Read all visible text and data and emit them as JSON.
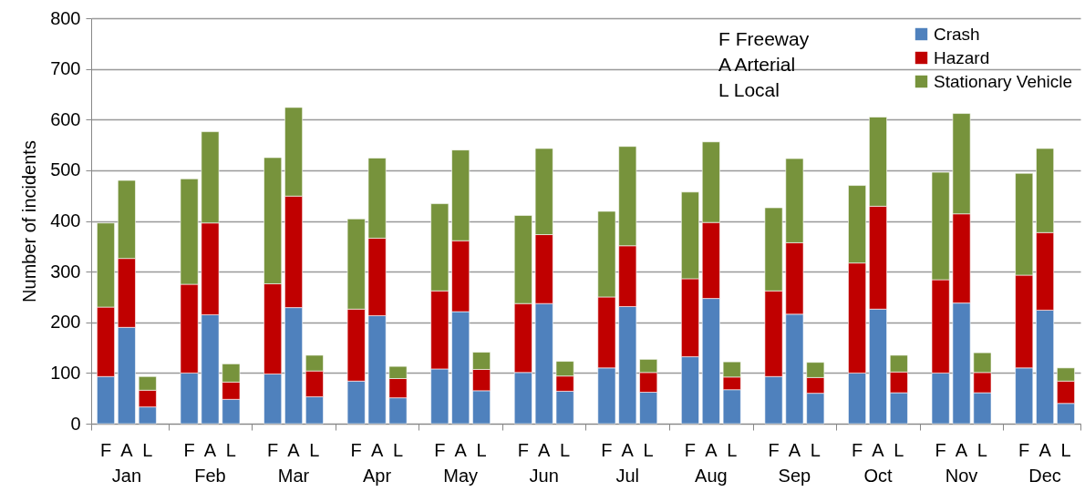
{
  "chart_data": {
    "type": "bar",
    "stacked": true,
    "ylabel": "Number of  incidents",
    "categories": [
      "F",
      "A",
      "L",
      "F",
      "A",
      "L",
      "F",
      "A",
      "L",
      "F",
      "A",
      "L",
      "F",
      "A",
      "L",
      "F",
      "A",
      "L",
      "F",
      "A",
      "L",
      "F",
      "A",
      "L",
      "F",
      "A",
      "L",
      "F",
      "A",
      "L",
      "F",
      "A",
      "L",
      "F",
      "A",
      "L"
    ],
    "series": [
      {
        "name": "Crash",
        "color": "#4f81bd",
        "values": [
          93,
          190,
          33,
          100,
          215,
          48,
          98,
          229,
          53,
          84,
          213,
          51,
          108,
          221,
          65,
          101,
          237,
          64,
          110,
          231,
          62,
          132,
          247,
          67,
          93,
          216,
          60,
          100,
          226,
          61,
          100,
          238,
          61,
          110,
          224,
          40
        ]
      },
      {
        "name": "Hazard",
        "color": "#c00000",
        "values": [
          137,
          136,
          33,
          175,
          181,
          34,
          178,
          220,
          51,
          142,
          153,
          38,
          154,
          140,
          42,
          136,
          136,
          30,
          140,
          120,
          39,
          154,
          150,
          25,
          169,
          141,
          31,
          217,
          203,
          41,
          184,
          176,
          40,
          183,
          153,
          44
        ]
      },
      {
        "name": "Stationary Vehicle",
        "color": "#77933c",
        "values": [
          166,
          154,
          27,
          208,
          180,
          36,
          249,
          175,
          31,
          178,
          158,
          24,
          172,
          179,
          34,
          174,
          170,
          29,
          169,
          196,
          26,
          171,
          159,
          30,
          164,
          166,
          30,
          153,
          176,
          33,
          212,
          198,
          39,
          201,
          166,
          26
        ]
      }
    ],
    "ylim": [
      0,
      800
    ],
    "yticks": [
      0,
      100,
      200,
      300,
      400,
      500,
      600,
      700,
      800
    ],
    "grid": "y",
    "legend": "top right",
    "annotations": [
      "Jan",
      "Feb",
      "Mar",
      "Apr",
      "May",
      "Jun",
      "Jul",
      "Aug",
      "Sep",
      "Oct",
      "Nov",
      "Dec",
      "F   Freeway",
      "A   Arterial",
      "L   Local"
    ]
  }
}
